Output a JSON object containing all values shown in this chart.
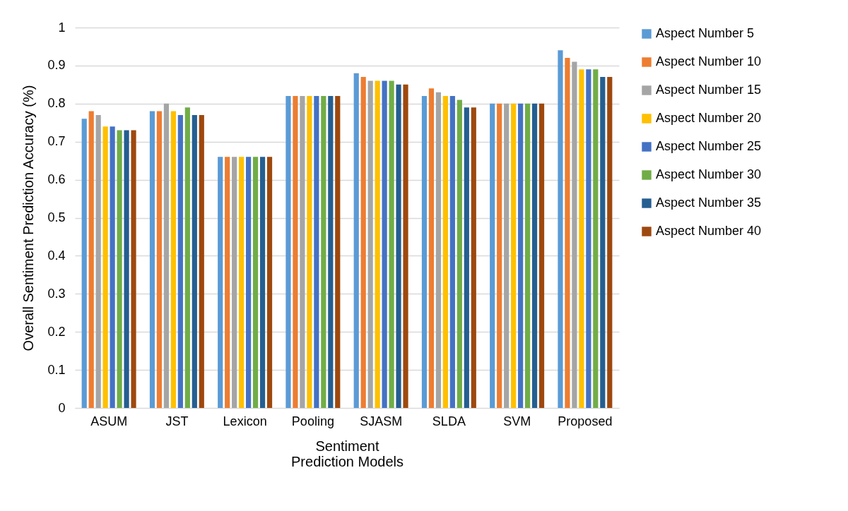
{
  "chart_data": {
    "type": "bar",
    "xlabel": "Sentiment\nPrediction Models",
    "ylabel": "Overall Sentiment Prediction Accuracy (%)",
    "categories": [
      "ASUM",
      "JST",
      "Lexicon",
      "Pooling",
      "SJASM",
      "SLDA",
      "SVM",
      "Proposed"
    ],
    "series": [
      {
        "name": "Aspect Number 5",
        "color": "#5b9bd5",
        "values": [
          0.76,
          0.78,
          0.66,
          0.82,
          0.88,
          0.82,
          0.8,
          0.94
        ]
      },
      {
        "name": "Aspect Number 10",
        "color": "#ed7d31",
        "values": [
          0.78,
          0.78,
          0.66,
          0.82,
          0.87,
          0.84,
          0.8,
          0.92
        ]
      },
      {
        "name": "Aspect Number 15",
        "color": "#a5a5a5",
        "values": [
          0.77,
          0.8,
          0.66,
          0.82,
          0.86,
          0.83,
          0.8,
          0.91
        ]
      },
      {
        "name": "Aspect Number 20",
        "color": "#ffc000",
        "values": [
          0.74,
          0.78,
          0.66,
          0.82,
          0.86,
          0.82,
          0.8,
          0.89
        ]
      },
      {
        "name": "Aspect Number 25",
        "color": "#4472c4",
        "values": [
          0.74,
          0.77,
          0.66,
          0.82,
          0.86,
          0.82,
          0.8,
          0.89
        ]
      },
      {
        "name": "Aspect Number 30",
        "color": "#70ad47",
        "values": [
          0.73,
          0.79,
          0.66,
          0.82,
          0.86,
          0.81,
          0.8,
          0.89
        ]
      },
      {
        "name": "Aspect Number 35",
        "color": "#255e91",
        "values": [
          0.73,
          0.77,
          0.66,
          0.82,
          0.85,
          0.79,
          0.8,
          0.87
        ]
      },
      {
        "name": "Aspect Number 40",
        "color": "#9e480e",
        "values": [
          0.73,
          0.77,
          0.66,
          0.82,
          0.85,
          0.79,
          0.8,
          0.87
        ]
      }
    ],
    "ylim": [
      0,
      1
    ],
    "yticks": [
      0,
      0.1,
      0.2,
      0.3,
      0.4,
      0.5,
      0.6,
      0.7,
      0.8,
      0.9,
      1
    ],
    "grid": "y",
    "legend": "right"
  }
}
